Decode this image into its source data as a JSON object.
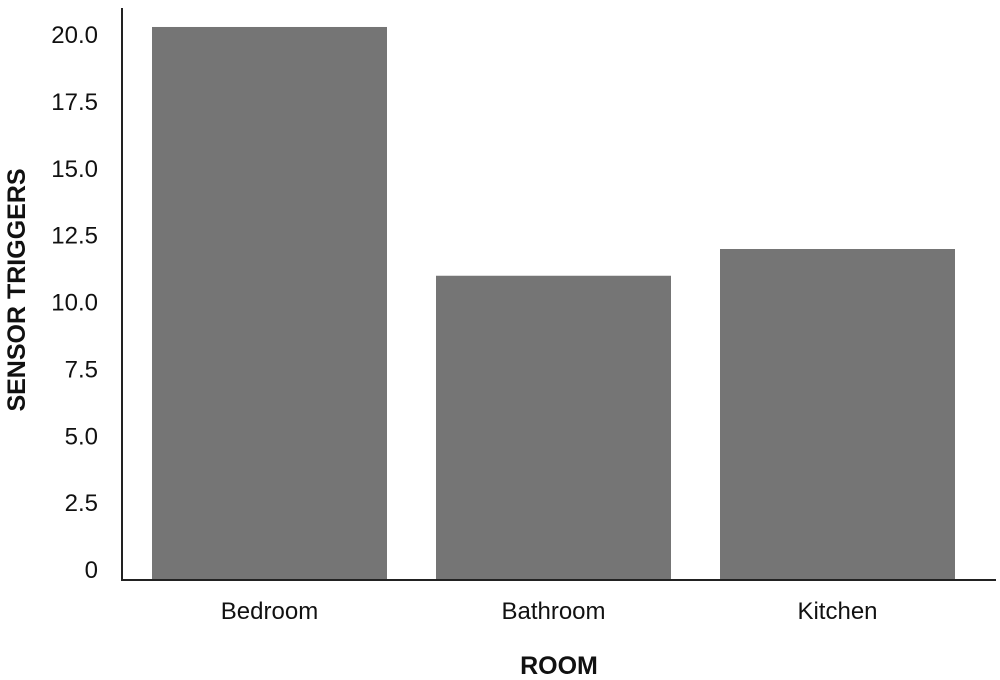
{
  "chart_data": {
    "type": "bar",
    "title": "",
    "xlabel": "ROOM",
    "ylabel": "SENSOR TRIGGERS",
    "categories": [
      "Bedroom",
      "Bathroom",
      "Kitchen"
    ],
    "values": [
      20.3,
      11.0,
      12.0
    ],
    "ylim": [
      0,
      20.0
    ],
    "yticks": [
      {
        "value": 0,
        "label": "0"
      },
      {
        "value": 2.5,
        "label": "2.5"
      },
      {
        "value": 5.0,
        "label": "5.0"
      },
      {
        "value": 7.5,
        "label": "7.5"
      },
      {
        "value": 10.0,
        "label": "10.0"
      },
      {
        "value": 12.5,
        "label": "12.5"
      },
      {
        "value": 15.0,
        "label": "15.0"
      },
      {
        "value": 17.5,
        "label": "17.5"
      },
      {
        "value": 20.0,
        "label": "20.0"
      }
    ],
    "grid": false,
    "legend": "none",
    "bar_color": "#757575"
  }
}
